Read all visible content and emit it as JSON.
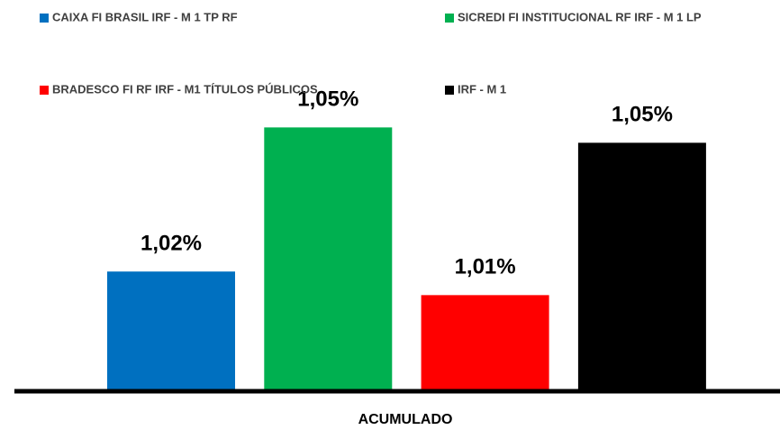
{
  "chart_data": {
    "type": "bar",
    "categories": [
      "ACUMULADO"
    ],
    "series": [
      {
        "name": "CAIXA FI BRASIL IRF - M 1 TP RF",
        "color": "#0070c0",
        "values": [
          1.016
        ],
        "value_labels": [
          "1,02%"
        ]
      },
      {
        "name": "SICREDI FI INSTITUCIONAL RF IRF - M 1 LP",
        "color": "#00b050",
        "values": [
          1.0545
        ],
        "value_labels": [
          "1,05%"
        ]
      },
      {
        "name": "BRADESCO FI RF IRF - M1 TÍTULOS PÚBLICOS",
        "color": "#ff0000",
        "values": [
          1.0097
        ],
        "value_labels": [
          "1,01%"
        ]
      },
      {
        "name": "IRF - M 1",
        "color": "#000000",
        "values": [
          1.0504
        ],
        "value_labels": [
          "1,05%"
        ]
      }
    ],
    "ylim": [
      0.9845,
      1.07
    ],
    "legend": "top"
  }
}
